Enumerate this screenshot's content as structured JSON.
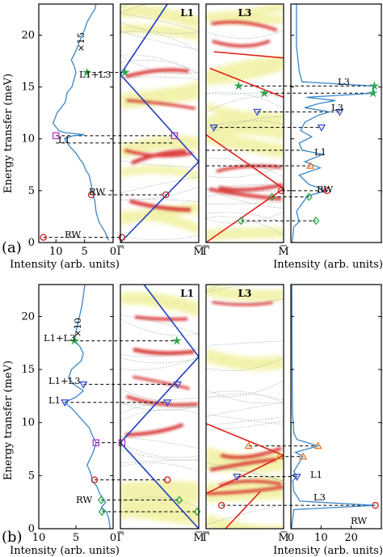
{
  "figure": {
    "ylabel": "Energy transfer (meV)",
    "xlabel_left": "Intensity (arb. units)",
    "xlabel_right": "Intensity (arb. units)",
    "q_labels": {
      "gamma": "Γ",
      "m": "M"
    },
    "panel_labels": {
      "a": "(a)",
      "b": "(b)"
    }
  },
  "colors": {
    "spectrum_line": "#3a86c8",
    "dispersion_l1": "#1f3fbf",
    "dispersion_l3": "#e0221b",
    "ridge_red": "#d42020",
    "ridge_yellow": "#e8e86a"
  },
  "chart_data": [
    {
      "id": "a-left",
      "type": "line",
      "xlabel": "Intensity (arb. units)",
      "ylabel": "Energy transfer (meV)",
      "xlim": [
        13,
        0
      ],
      "ylim": [
        0,
        23
      ],
      "yticks": [
        "0",
        "5",
        "10",
        "15",
        "20"
      ],
      "xticks": [
        "10",
        "5",
        "0"
      ],
      "annotations": [
        "×15",
        "L1+L3",
        "L1",
        "RW",
        "RW"
      ],
      "series": [
        {
          "x": [
            0.8,
            1.4,
            2.5,
            3.0,
            3.2,
            3.5,
            3.8,
            4.2,
            4.8,
            5.2,
            5.8,
            6.2,
            6.8,
            7.5,
            8.0,
            8.5,
            7.0,
            5.0,
            8.5,
            9.5,
            10.5,
            9.8,
            8.4,
            8.0,
            7.2,
            6.8,
            6.5,
            6.8,
            7.3,
            6.5,
            5.8,
            5.0,
            4.6,
            4.0,
            3.2,
            3.0
          ],
          "y": [
            0.2,
            1.0,
            2.0,
            3.0,
            4.0,
            4.6,
            5.5,
            6.5,
            7.0,
            7.6,
            8.0,
            8.4,
            8.8,
            9.2,
            9.6,
            10.0,
            10.3,
            10.4,
            10.6,
            10.8,
            11.5,
            12.5,
            13.5,
            14.5,
            15.0,
            15.8,
            16.4,
            17.0,
            17.6,
            18.5,
            19.5,
            20.5,
            21.2,
            21.8,
            22.5,
            23.0
          ]
        }
      ],
      "markers": [
        {
          "symbol": "circle",
          "color": "#c81f1f",
          "x": 12.2,
          "y": 0.5
        },
        {
          "symbol": "circle",
          "color": "#c81f1f",
          "x": 3.8,
          "y": 4.6
        },
        {
          "symbol": "square",
          "color": "#b535c8",
          "x": 10.0,
          "y": 10.3
        },
        {
          "symbol": "star",
          "color": "#2aa84a",
          "x": 4.6,
          "y": 16.4
        }
      ]
    },
    {
      "id": "a-L1",
      "type": "heatmap",
      "title": "L1",
      "xlim": [
        0,
        1
      ],
      "ylim": [
        0,
        23
      ],
      "dispersion": {
        "series": [
          {
            "x": [
              0,
              1
            ],
            "y": [
              0,
              7.8
            ]
          },
          {
            "x": [
              0,
              1
            ],
            "y": [
              16.2,
              7.8
            ]
          },
          {
            "x": [
              0,
              0.6
            ],
            "y": [
              16.2,
              23
            ]
          }
        ]
      },
      "markers": [
        {
          "symbol": "circle",
          "color": "#c81f1f",
          "x": 0.02,
          "y": 0.5
        },
        {
          "symbol": "circle",
          "color": "#c81f1f",
          "x": 0.58,
          "y": 4.6
        },
        {
          "symbol": "square",
          "color": "#b535c8",
          "x": 0.69,
          "y": 10.3
        },
        {
          "symbol": "star",
          "color": "#2aa84a",
          "x": 0.06,
          "y": 16.4
        }
      ]
    },
    {
      "id": "a-L3",
      "type": "heatmap",
      "title": "L3",
      "xlim": [
        0,
        1
      ],
      "ylim": [
        0,
        23
      ],
      "dispersion": {
        "series": [
          {
            "x": [
              1,
              0
            ],
            "y": [
              5.2,
              0
            ]
          },
          {
            "x": [
              1,
              0
            ],
            "y": [
              5.2,
              10.4
            ]
          },
          {
            "x": [
              0.05,
              1
            ],
            "y": [
              16.8,
              14.0
            ]
          },
          {
            "x": [
              0.1,
              1
            ],
            "y": [
              18.4,
              17.8
            ]
          }
        ]
      },
      "markers": [
        {
          "symbol": "circle",
          "color": "#c81f1f",
          "x": 0.97,
          "y": 5.0
        },
        {
          "symbol": "diamond",
          "color": "#2aa84a",
          "x": 0.85,
          "y": 4.4
        },
        {
          "symbol": "diamond",
          "color": "#2aa84a",
          "x": 0.45,
          "y": 2.1
        },
        {
          "symbol": "triangle-down",
          "color": "#3a4bd0",
          "x": 0.66,
          "y": 12.6
        },
        {
          "symbol": "triangle-down",
          "color": "#3a4bd0",
          "x": 0.1,
          "y": 11.1
        },
        {
          "symbol": "star",
          "color": "#2aa84a",
          "x": 0.42,
          "y": 15.1
        },
        {
          "symbol": "star",
          "color": "#2aa84a",
          "x": 0.75,
          "y": 14.4
        }
      ]
    },
    {
      "id": "a-right",
      "type": "line",
      "xlabel": "Intensity (arb. units)",
      "xlim": [
        0,
        6.5
      ],
      "ylim": [
        0,
        23
      ],
      "yticks": [
        "0",
        "5",
        "10",
        "15",
        "20"
      ],
      "annotations": [
        "L3",
        "L3",
        "L1",
        "RW"
      ],
      "series": [
        {
          "x": [
            0.1,
            0.2,
            0.6,
            0.4,
            1.2,
            2.6,
            1.3,
            0.6,
            2.1,
            1.0,
            2.3,
            0.8,
            0.6,
            1.5,
            0.7,
            1.0,
            2.0,
            2.8,
            1.0,
            2.0,
            3.2,
            1.1,
            6.0,
            5.9,
            0.8,
            0.6,
            0.4,
            0.4
          ],
          "y": [
            0.0,
            1.5,
            2.0,
            3.0,
            4.5,
            5.0,
            5.6,
            6.5,
            7.2,
            7.8,
            8.5,
            8.9,
            9.6,
            10.2,
            10.8,
            11.6,
            12.3,
            12.6,
            13.0,
            13.4,
            13.7,
            14.0,
            14.4,
            15.1,
            15.5,
            16.5,
            19.0,
            23.0
          ]
        }
      ],
      "markers": [
        {
          "symbol": "circle",
          "color": "#c81f1f",
          "x": 2.6,
          "y": 5.0
        },
        {
          "symbol": "diamond",
          "color": "#2aa84a",
          "x": 1.3,
          "y": 4.4
        },
        {
          "symbol": "diamond",
          "color": "#2aa84a",
          "x": 1.8,
          "y": 2.1
        },
        {
          "symbol": "triangle-up",
          "color": "#e07a2a",
          "x": 1.4,
          "y": 7.4
        },
        {
          "symbol": "triangle-down",
          "color": "#3a4bd0",
          "x": 2.2,
          "y": 11.1
        },
        {
          "symbol": "triangle-down",
          "color": "#3a4bd0",
          "x": 3.5,
          "y": 12.6
        },
        {
          "symbol": "star",
          "color": "#2aa84a",
          "x": 5.9,
          "y": 14.4
        },
        {
          "symbol": "star",
          "color": "#2aa84a",
          "x": 6.0,
          "y": 15.1
        }
      ]
    },
    {
      "id": "b-left",
      "type": "line",
      "xlabel": "Intensity (arb. units)",
      "ylabel": "Energy transfer (meV)",
      "xlim": [
        10,
        0
      ],
      "ylim": [
        0,
        23
      ],
      "yticks": [
        "0",
        "5",
        "10",
        "15",
        "20"
      ],
      "xticks": [
        "10",
        "5",
        "0"
      ],
      "annotations": [
        "×10",
        "L1+L3",
        "L1+L3",
        "L1",
        "RW"
      ],
      "series": [
        {
          "x": [
            0.4,
            0.6,
            0.9,
            1.6,
            1.0,
            1.8,
            2.2,
            2.8,
            3.0,
            3.5,
            2.8,
            2.4,
            2.3,
            2.8,
            3.2,
            4.5,
            5.5,
            6.5,
            5.0,
            4.0,
            5.3,
            6.0,
            5.6,
            4.3,
            4.0,
            4.5,
            5.2,
            5.0,
            4.7,
            4.2,
            3.8
          ],
          "y": [
            0.0,
            1.0,
            1.6,
            2.0,
            2.5,
            3.3,
            4.0,
            4.5,
            5.2,
            6.0,
            7.0,
            7.8,
            8.1,
            8.8,
            9.5,
            10.5,
            11.3,
            11.9,
            12.4,
            13.0,
            13.6,
            14.2,
            15.0,
            15.8,
            16.5,
            17.2,
            17.7,
            18.5,
            19.5,
            21.0,
            23.0
          ]
        }
      ],
      "markers": [
        {
          "symbol": "circle",
          "color": "#c81f1f",
          "x": 2.5,
          "y": 4.6
        },
        {
          "symbol": "diamond",
          "color": "#2aa84a",
          "x": 1.6,
          "y": 2.7
        },
        {
          "symbol": "diamond",
          "color": "#2aa84a",
          "x": 1.5,
          "y": 1.6
        },
        {
          "symbol": "square",
          "color": "#b535c8",
          "x": 2.3,
          "y": 8.1
        },
        {
          "symbol": "triangle-down",
          "color": "#3a4bd0",
          "x": 6.5,
          "y": 11.9
        },
        {
          "symbol": "triangle-down",
          "color": "#3a4bd0",
          "x": 4.0,
          "y": 13.6
        },
        {
          "symbol": "star",
          "color": "#2aa84a",
          "x": 5.2,
          "y": 17.7
        }
      ]
    },
    {
      "id": "b-L1",
      "type": "heatmap",
      "title": "L1",
      "xlim": [
        0,
        1
      ],
      "ylim": [
        0,
        23
      ],
      "dispersion": {
        "series": [
          {
            "x": [
              0,
              1
            ],
            "y": [
              8.1,
              0
            ]
          },
          {
            "x": [
              0,
              1
            ],
            "y": [
              8.1,
              16.2
            ]
          },
          {
            "x": [
              0.3,
              1
            ],
            "y": [
              23,
              16.2
            ]
          }
        ]
      },
      "markers": [
        {
          "symbol": "square",
          "color": "#b535c8",
          "x": 0.02,
          "y": 8.1
        },
        {
          "symbol": "circle",
          "color": "#c81f1f",
          "x": 0.6,
          "y": 4.6
        },
        {
          "symbol": "diamond",
          "color": "#2aa84a",
          "x": 0.75,
          "y": 2.7
        },
        {
          "symbol": "diamond",
          "color": "#2aa84a",
          "x": 0.98,
          "y": 1.6
        },
        {
          "symbol": "triangle-down",
          "color": "#3a4bd0",
          "x": 0.6,
          "y": 11.9
        },
        {
          "symbol": "triangle-down",
          "color": "#3a4bd0",
          "x": 0.73,
          "y": 13.6
        },
        {
          "symbol": "star",
          "color": "#2aa84a",
          "x": 0.72,
          "y": 17.7
        }
      ]
    },
    {
      "id": "b-L3",
      "type": "heatmap",
      "title": "L3",
      "xlim": [
        0,
        1
      ],
      "ylim": [
        0,
        23
      ],
      "dispersion": {
        "series": [
          {
            "x": [
              0,
              1
            ],
            "y": [
              3.3,
              6.9
            ]
          },
          {
            "x": [
              0,
              1
            ],
            "y": [
              9.9,
              6.9
            ]
          },
          {
            "x": [
              0.25,
              0.7
            ],
            "y": [
              0,
              3.5
            ]
          }
        ]
      },
      "markers": [
        {
          "symbol": "circle",
          "color": "#c81f1f",
          "x": 0.2,
          "y": 2.2
        },
        {
          "symbol": "triangle-up",
          "color": "#e07a2a",
          "x": 0.55,
          "y": 7.8
        },
        {
          "symbol": "triangle-up",
          "color": "#e07a2a",
          "x": 0.95,
          "y": 6.8
        },
        {
          "symbol": "triangle-down",
          "color": "#3a4bd0",
          "x": 0.4,
          "y": 4.9
        }
      ]
    },
    {
      "id": "b-right",
      "type": "line",
      "xlabel": "Intensity (arb. units)",
      "xlim": [
        0,
        30
      ],
      "ylim": [
        0,
        23
      ],
      "xticks": [
        "0",
        "10",
        "20"
      ],
      "yticks": [
        "0",
        "5",
        "10",
        "15",
        "20"
      ],
      "annotations": [
        "L1",
        "L3",
        "RW"
      ],
      "series": [
        {
          "x": [
            0.2,
            1.0,
            28.0,
            3.0,
            1.0,
            0.6,
            2.0,
            1.0,
            4.0,
            1.5,
            9.0,
            2.0,
            1.0,
            0.5,
            0.4,
            0.3
          ],
          "y": [
            0.0,
            1.8,
            2.2,
            2.6,
            3.5,
            4.5,
            4.9,
            5.4,
            6.8,
            7.2,
            7.8,
            8.4,
            9.0,
            11.0,
            16.0,
            23.0
          ]
        }
      ],
      "markers": [
        {
          "symbol": "circle",
          "color": "#c81f1f",
          "x": 28.0,
          "y": 2.2
        },
        {
          "symbol": "triangle-down",
          "color": "#3a4bd0",
          "x": 2.0,
          "y": 4.9
        },
        {
          "symbol": "triangle-up",
          "color": "#e07a2a",
          "x": 4.0,
          "y": 6.8
        },
        {
          "symbol": "triangle-up",
          "color": "#e07a2a",
          "x": 9.0,
          "y": 7.8
        }
      ]
    }
  ]
}
